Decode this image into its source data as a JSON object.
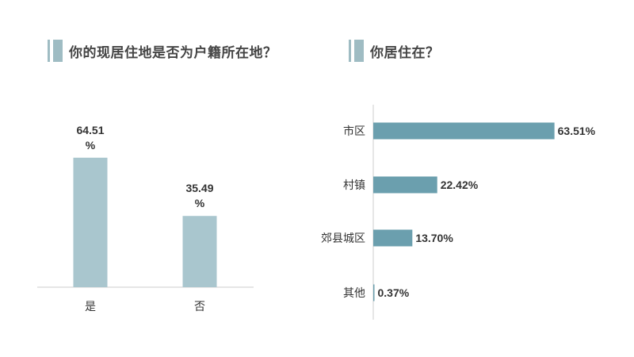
{
  "colors": {
    "left_bar": "#a9c6ce",
    "right_bar": "#6b9fae",
    "axis": "#cccccc",
    "title_mark": "#9fbcc3"
  },
  "chart_data": [
    {
      "type": "bar",
      "title": "你的现居住地是否为户籍所在地？",
      "categories": [
        "是",
        "否"
      ],
      "values": [
        64.51,
        35.49
      ],
      "value_labels": [
        [
          "64.51",
          "%"
        ],
        [
          "35.49",
          "%"
        ]
      ],
      "ylim": [
        0,
        70
      ],
      "grid": false,
      "legend": "none"
    },
    {
      "type": "bar",
      "orientation": "horizontal",
      "title": "你居住在？",
      "categories": [
        "市区",
        "村镇",
        "郊县城区",
        "其他"
      ],
      "values": [
        63.51,
        22.42,
        13.7,
        0.37
      ],
      "value_labels": [
        "63.51%",
        "22.42%",
        "13.70%",
        "0.37%"
      ],
      "xlim": [
        0,
        63.51
      ],
      "grid": false,
      "legend": "none"
    }
  ]
}
